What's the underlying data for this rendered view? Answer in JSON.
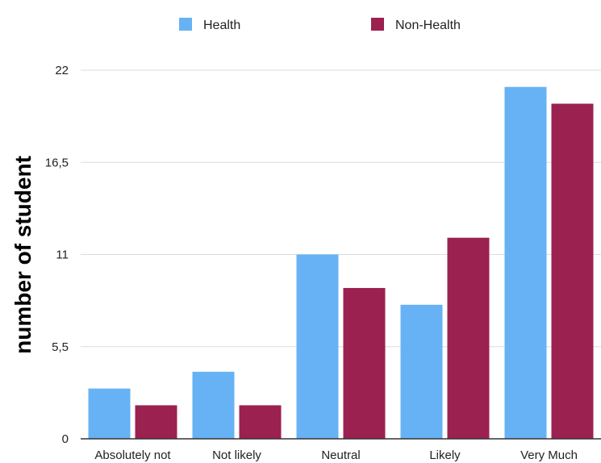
{
  "chart_data": {
    "type": "bar",
    "categories": [
      "Absolutely not",
      "Not likely",
      "Neutral",
      "Likely",
      "Very Much"
    ],
    "series": [
      {
        "name": "Health",
        "color": "#66b2f5",
        "values": [
          3,
          4,
          11,
          8,
          21
        ]
      },
      {
        "name": "Non-Health",
        "color": "#9b2150",
        "values": [
          2,
          2,
          9,
          12,
          20
        ]
      }
    ],
    "ylabel": "number of student",
    "xlabel": "",
    "yticks": [
      0,
      5.5,
      11,
      16.5,
      22
    ],
    "ytick_labels": [
      "0",
      "5,5",
      "11",
      "16,5",
      "22"
    ],
    "ylim": [
      0,
      22
    ],
    "grid": "horizontal",
    "legend_position": "top-center"
  }
}
